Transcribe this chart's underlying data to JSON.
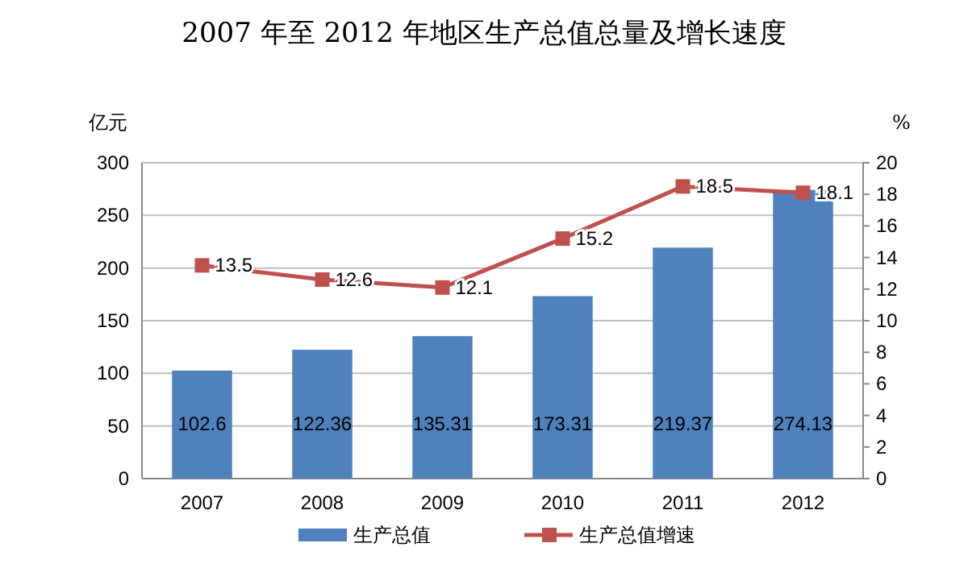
{
  "chart_data": {
    "type": "bar",
    "title": "2007 年至 2012 年地区生产总值总量及增长速度",
    "ylabel": "亿元",
    "y2label": "%",
    "categories": [
      "2007",
      "2008",
      "2009",
      "2010",
      "2011",
      "2012"
    ],
    "series": [
      {
        "name": "生产总值",
        "color": "#4f81bd",
        "values": [
          102.6,
          122.36,
          135.31,
          173.31,
          219.37,
          274.13
        ]
      },
      {
        "name": "生产总值增速",
        "type": "line",
        "axis": "y2",
        "color": "#c0504d",
        "values": [
          13.5,
          12.6,
          12.1,
          15.2,
          18.5,
          18.1
        ]
      }
    ],
    "ylim": [
      0,
      300
    ],
    "yticks": [
      0,
      50,
      100,
      150,
      200,
      250,
      300
    ],
    "y2lim": [
      0,
      20
    ],
    "y2ticks": [
      0,
      2,
      4,
      6,
      8,
      10,
      12,
      14,
      16,
      18,
      20
    ],
    "grid": "y",
    "legend": "bottom",
    "marker": "square",
    "data_labels": true
  }
}
